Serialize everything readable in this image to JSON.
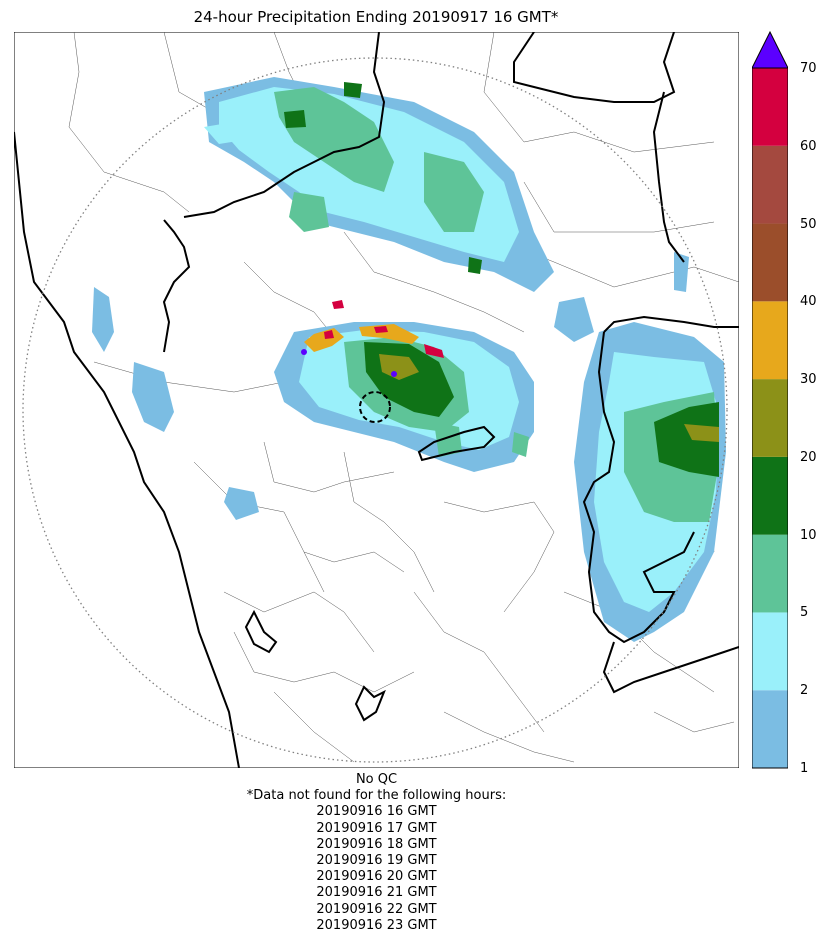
{
  "title": "24-hour Precipitation Ending 20190917 16 GMT*",
  "colorbar": {
    "bins": [
      {
        "from": 1,
        "to": 2,
        "color": "#7bbde3"
      },
      {
        "from": 2,
        "to": 5,
        "color": "#9af0fa"
      },
      {
        "from": 5,
        "to": 10,
        "color": "#5ec498"
      },
      {
        "from": 10,
        "to": 20,
        "color": "#0f7317"
      },
      {
        "from": 20,
        "to": 30,
        "color": "#8c9118"
      },
      {
        "from": 30,
        "to": 40,
        "color": "#e7a81c"
      },
      {
        "from": 40,
        "to": 50,
        "color": "#9b4e2b"
      },
      {
        "from": 50,
        "to": 60,
        "color": "#a4493f"
      },
      {
        "from": 60,
        "to": 70,
        "color": "#d4003f"
      }
    ],
    "overflow_color": "#5b00ff",
    "tick_labels": [
      "1",
      "2",
      "5",
      "10",
      "20",
      "30",
      "40",
      "50",
      "60",
      "70"
    ]
  },
  "notes": {
    "qc": "No QC",
    "missing_header": "*Data not found for the following hours:",
    "missing_hours": [
      "20190916 16 GMT",
      "20190916 17 GMT",
      "20190916 18 GMT",
      "20190916 19 GMT",
      "20190916 20 GMT",
      "20190916 21 GMT",
      "20190916 22 GMT",
      "20190916 23 GMT"
    ]
  }
}
